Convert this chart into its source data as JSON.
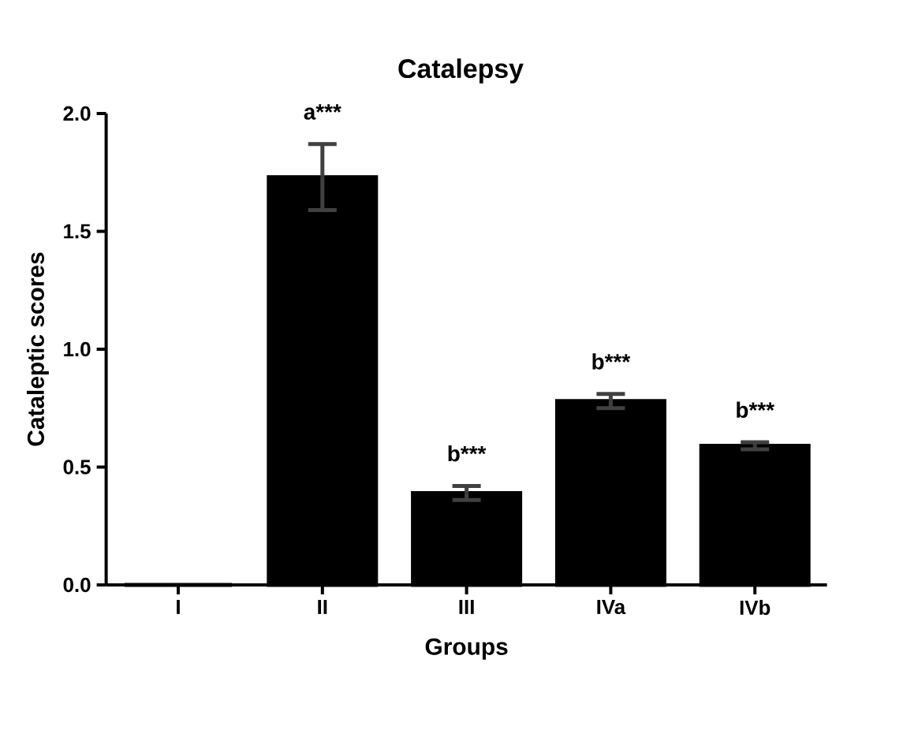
{
  "chart_data": {
    "type": "bar",
    "title": "Catalepsy",
    "xlabel": "Groups",
    "ylabel": "Cataleptic scores",
    "categories": [
      "I",
      "II",
      "III",
      "IVa",
      "IVb"
    ],
    "values": [
      0,
      1.73,
      0.39,
      0.78,
      0.59
    ],
    "errors": [
      null,
      0.14,
      0.03,
      0.03,
      0.015
    ],
    "color": "#000000",
    "ylim": [
      0,
      2.0
    ],
    "yticks": [
      {
        "value": 0,
        "label": "0.0"
      },
      {
        "value": 0.5,
        "label": "0.5"
      },
      {
        "value": 1.0,
        "label": "1.0"
      },
      1.5,
      {
        "value": 2.0,
        "label": "2.0"
      }
    ],
    "annotations": [
      {
        "text": "a***",
        "x": "II",
        "y": 1.87
      },
      {
        "text": "b***",
        "x": "III",
        "y": 0.42
      },
      {
        "text": "b***",
        "x": "IVa",
        "y": 0.81
      },
      {
        "text": "b***",
        "x": "IVb",
        "y": 0.605
      }
    ],
    "grid": false
  }
}
